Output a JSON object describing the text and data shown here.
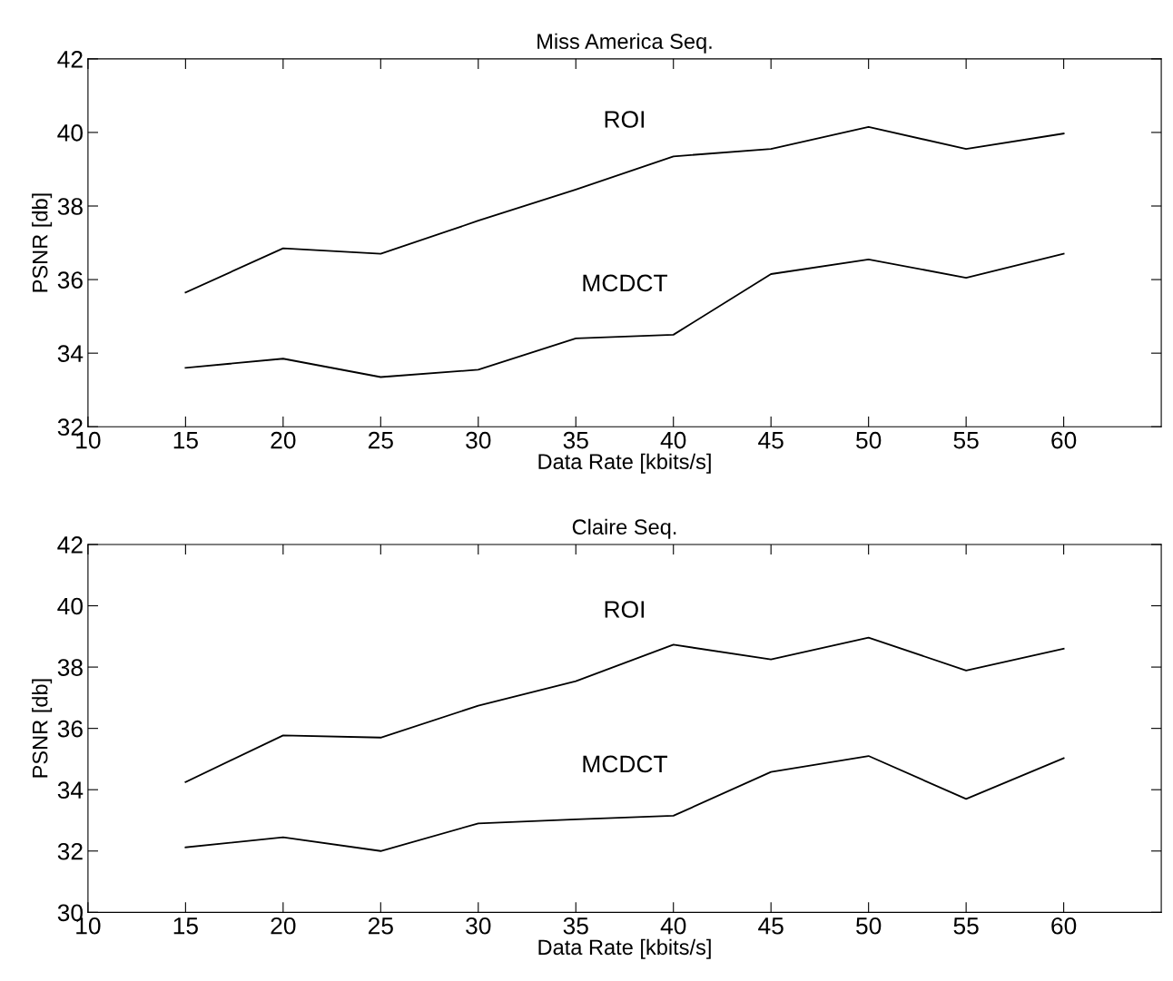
{
  "chart_data": [
    {
      "type": "line",
      "title": "Miss America Seq.",
      "xlabel": "Data Rate [kbits/s]",
      "ylabel": "PSNR [db]",
      "x": [
        15,
        20,
        25,
        30,
        35,
        40,
        45,
        50,
        55,
        60
      ],
      "series": [
        {
          "name": "ROI",
          "color": "#000000",
          "values": [
            35.65,
            36.85,
            36.7,
            37.6,
            38.45,
            39.35,
            39.55,
            40.15,
            39.55,
            39.97
          ]
        },
        {
          "name": "MCDCT",
          "color": "#000000",
          "values": [
            33.6,
            33.85,
            33.35,
            33.55,
            34.4,
            34.5,
            36.15,
            36.55,
            36.05,
            36.7
          ]
        }
      ],
      "xlim": [
        10,
        65
      ],
      "xticks": [
        10,
        15,
        20,
        25,
        30,
        35,
        40,
        45,
        50,
        55,
        60
      ],
      "ylim": [
        32,
        42
      ],
      "yticks": [
        32,
        34,
        36,
        38,
        40,
        42
      ],
      "grid": false,
      "legend": false,
      "line_style": "solid",
      "marker": "none"
    },
    {
      "type": "line",
      "title": "Claire Seq.",
      "xlabel": "Data Rate [kbits/s]",
      "ylabel": "PSNR [db]",
      "x": [
        15,
        20,
        25,
        30,
        35,
        40,
        45,
        50,
        55,
        60
      ],
      "series": [
        {
          "name": "ROI",
          "color": "#000000",
          "values": [
            34.25,
            35.77,
            35.7,
            36.74,
            37.54,
            38.73,
            38.25,
            38.96,
            37.89,
            38.6
          ]
        },
        {
          "name": "MCDCT",
          "color": "#000000",
          "values": [
            32.12,
            32.45,
            32.0,
            32.9,
            33.03,
            33.15,
            34.58,
            35.1,
            33.7,
            35.03
          ]
        }
      ],
      "xlim": [
        10,
        65
      ],
      "xticks": [
        10,
        15,
        20,
        25,
        30,
        35,
        40,
        45,
        50,
        55,
        60
      ],
      "ylim": [
        30,
        42
      ],
      "yticks": [
        30,
        32,
        34,
        36,
        38,
        40,
        42
      ],
      "grid": false,
      "legend": false,
      "line_style": "solid",
      "marker": "none"
    }
  ]
}
